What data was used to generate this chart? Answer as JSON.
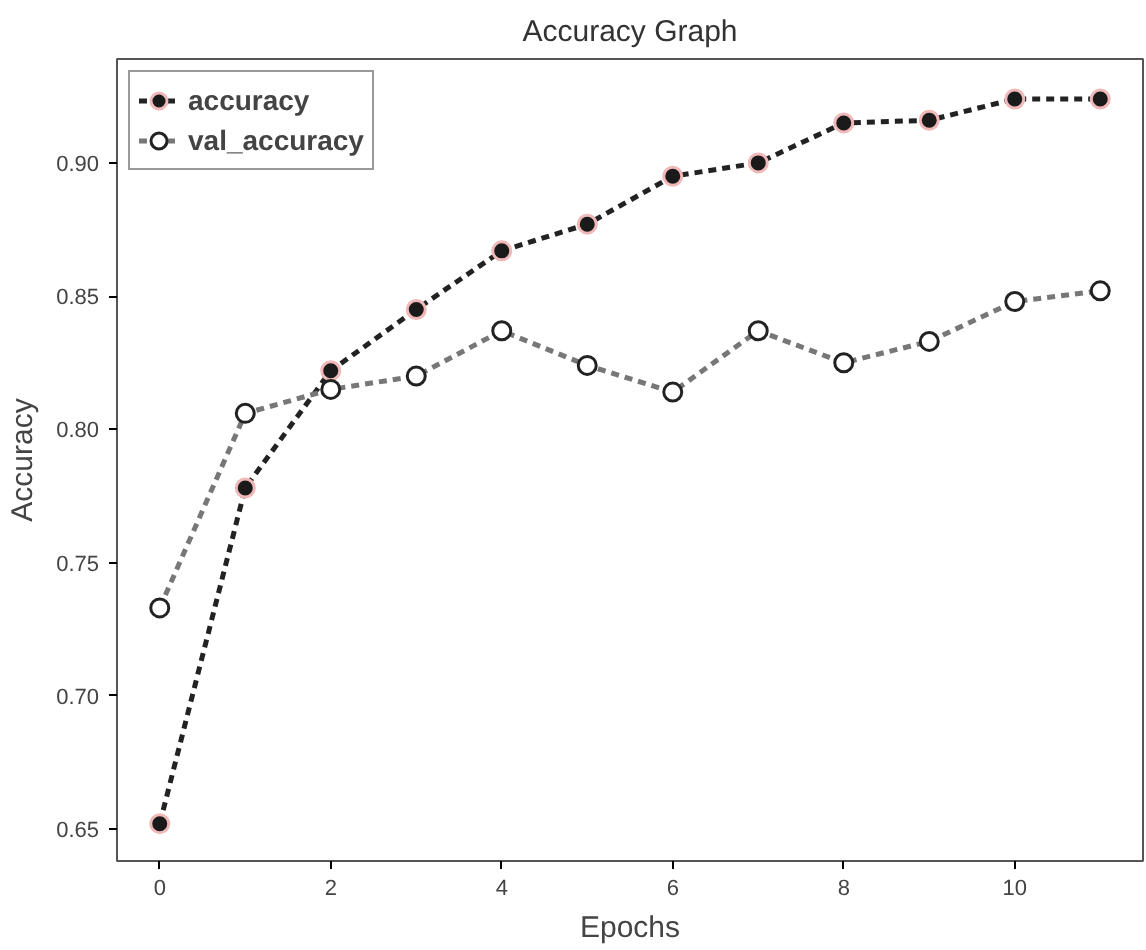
{
  "chart_data": {
    "type": "line",
    "title": "Accuracy Graph",
    "xlabel": "Epochs",
    "ylabel": "Accuracy",
    "x": [
      0,
      1,
      2,
      3,
      4,
      5,
      6,
      7,
      8,
      9,
      10,
      11
    ],
    "series": [
      {
        "name": "accuracy",
        "color": "#222222",
        "values": [
          0.652,
          0.778,
          0.822,
          0.845,
          0.867,
          0.877,
          0.895,
          0.9,
          0.915,
          0.916,
          0.924,
          0.924
        ]
      },
      {
        "name": "val_accuracy",
        "color": "#777777",
        "values": [
          0.733,
          0.806,
          0.815,
          0.82,
          0.837,
          0.824,
          0.814,
          0.837,
          0.825,
          0.833,
          0.848,
          0.852
        ]
      }
    ],
    "xlim": [
      -0.5,
      11.5
    ],
    "ylim": [
      0.638,
      0.939
    ],
    "xticks": [
      0,
      2,
      4,
      6,
      8,
      10
    ],
    "yticks": [
      0.65,
      {
        "value": 0.7,
        "label": "0.70"
      },
      0.75,
      {
        "value": 0.8,
        "label": "0.80"
      },
      0.85,
      {
        "value": 0.9,
        "label": "0.90"
      }
    ],
    "grid": false,
    "legend": "top left",
    "marker": "circle",
    "line_style": "dashed"
  }
}
